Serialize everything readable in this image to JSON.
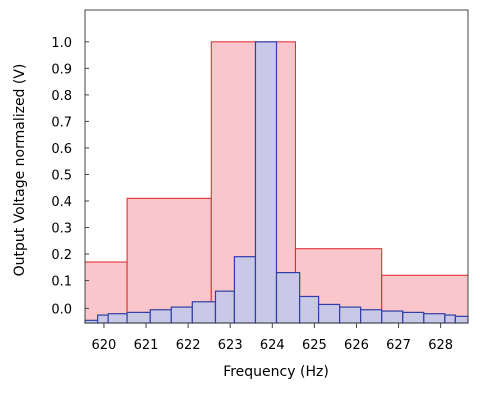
{
  "chart_data": {
    "type": "bar",
    "xlabel": "Frequency (Hz)",
    "ylabel": "Output Voltage normalized (V)",
    "xlim": [
      619.55,
      628.65
    ],
    "ylim": [
      -0.06,
      1.12
    ],
    "x_ticks": [
      "620",
      "621",
      "622",
      "623",
      "624",
      "625",
      "626",
      "627",
      "628"
    ],
    "y_ticks": [
      "0.0",
      "0.1",
      "0.2",
      "0.3",
      "0.4",
      "0.5",
      "0.6",
      "0.7",
      "0.8",
      "0.9",
      "1.0"
    ],
    "series": [
      {
        "type": "histogram",
        "color": "#f9c6cc",
        "edge_color": "#e0202a",
        "bins": [
          {
            "x0": 619.55,
            "x1": 620.55,
            "value": 0.17
          },
          {
            "x0": 620.55,
            "x1": 622.55,
            "value": 0.41
          },
          {
            "x0": 622.55,
            "x1": 624.55,
            "value": 1.0
          },
          {
            "x0": 624.55,
            "x1": 626.6,
            "value": 0.22
          },
          {
            "x0": 626.6,
            "x1": 628.65,
            "value": 0.12
          }
        ]
      },
      {
        "type": "histogram",
        "color": "#c9c8e6",
        "edge_color": "#2f3fa8",
        "bins": [
          {
            "x0": 619.55,
            "x1": 619.85,
            "value": -0.05
          },
          {
            "x0": 619.85,
            "x1": 620.1,
            "value": -0.03
          },
          {
            "x0": 620.1,
            "x1": 620.55,
            "value": -0.025
          },
          {
            "x0": 620.55,
            "x1": 621.1,
            "value": -0.02
          },
          {
            "x0": 621.1,
            "x1": 621.6,
            "value": -0.01
          },
          {
            "x0": 621.6,
            "x1": 622.1,
            "value": 0.0
          },
          {
            "x0": 622.1,
            "x1": 622.65,
            "value": 0.02
          },
          {
            "x0": 622.65,
            "x1": 623.1,
            "value": 0.06
          },
          {
            "x0": 623.1,
            "x1": 623.6,
            "value": 0.19
          },
          {
            "x0": 623.6,
            "x1": 624.1,
            "value": 1.0
          },
          {
            "x0": 624.1,
            "x1": 624.65,
            "value": 0.13
          },
          {
            "x0": 624.65,
            "x1": 625.1,
            "value": 0.04
          },
          {
            "x0": 625.1,
            "x1": 625.6,
            "value": 0.01
          },
          {
            "x0": 625.6,
            "x1": 626.1,
            "value": 0.0
          },
          {
            "x0": 626.1,
            "x1": 626.6,
            "value": -0.01
          },
          {
            "x0": 626.6,
            "x1": 627.1,
            "value": -0.015
          },
          {
            "x0": 627.1,
            "x1": 627.6,
            "value": -0.02
          },
          {
            "x0": 627.6,
            "x1": 628.1,
            "value": -0.025
          },
          {
            "x0": 628.1,
            "x1": 628.35,
            "value": -0.03
          },
          {
            "x0": 628.35,
            "x1": 628.65,
            "value": -0.035
          }
        ]
      }
    ]
  }
}
